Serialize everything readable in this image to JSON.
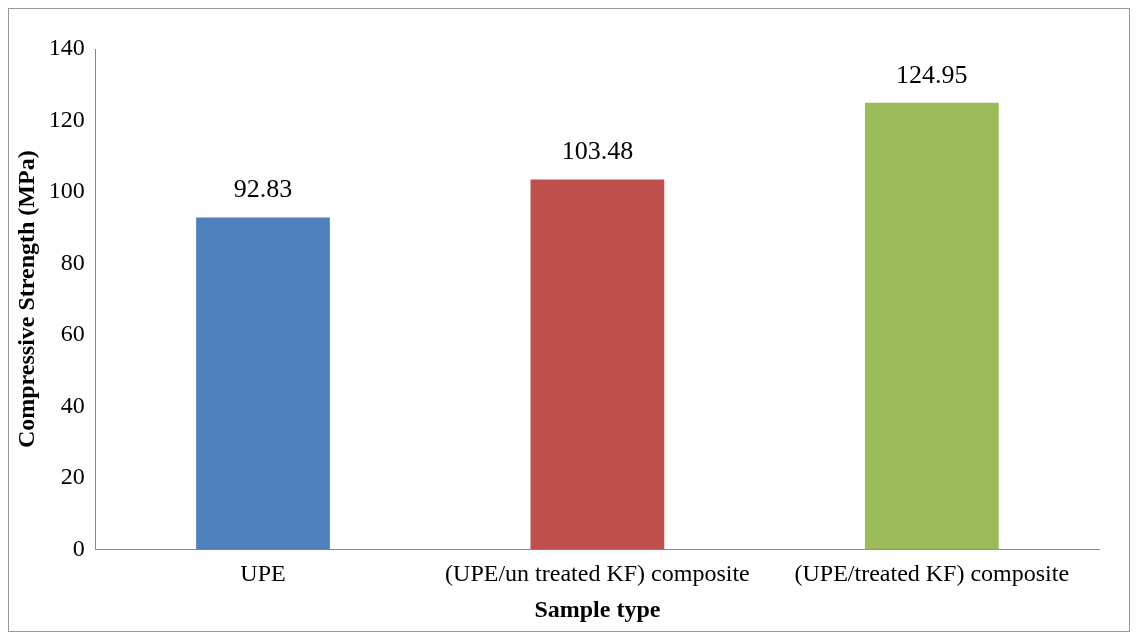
{
  "chart_data": {
    "type": "bar",
    "xlabel": "Sample type",
    "ylabel": "Compressive Strength (MPa)",
    "categories": [
      "UPE",
      "(UPE/un treated KF) composite",
      "(UPE/treated KF) composite"
    ],
    "values": [
      92.83,
      103.48,
      124.95
    ],
    "colors": [
      "#4f81bd",
      "#c0504d",
      "#9bbb59"
    ],
    "ylim": [
      0,
      140
    ],
    "yticks": [
      0,
      20,
      40,
      60,
      80,
      100,
      120,
      140
    ],
    "grid": false,
    "data_labels": true,
    "legend": false
  }
}
